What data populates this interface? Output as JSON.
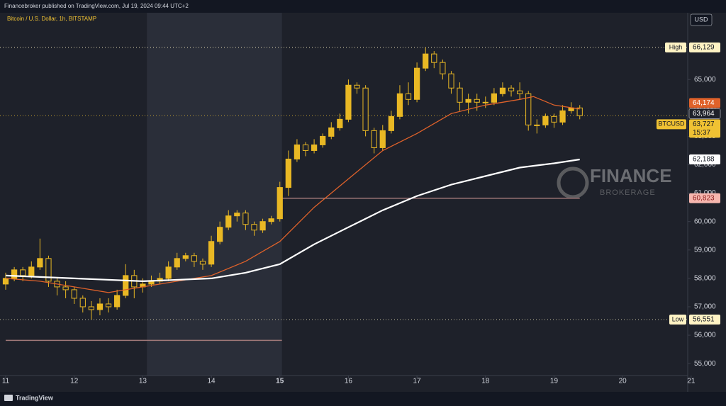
{
  "header": {
    "published": "Financebroker published on TradingView.com, Jul 19, 2024 09:44 UTC+2",
    "brand": "TradingView"
  },
  "chart_data": {
    "type": "candlestick",
    "title": "Bitcoin / U.S. Dollar, 1h, BITSTAMP",
    "currency": "USD",
    "color": "#e9b824",
    "x": [
      11,
      11.125,
      11.25,
      11.375,
      11.5,
      11.625,
      11.75,
      11.875,
      12,
      12.125,
      12.25,
      12.375,
      12.5,
      12.625,
      12.75,
      12.875,
      13,
      13.125,
      13.25,
      13.375,
      13.5,
      13.625,
      13.75,
      13.875,
      14,
      14.125,
      14.25,
      14.375,
      14.5,
      14.625,
      14.75,
      14.875,
      15,
      15.125,
      15.25,
      15.375,
      15.5,
      15.625,
      15.75,
      15.875,
      16,
      16.125,
      16.25,
      16.375,
      16.5,
      16.625,
      16.75,
      16.875,
      17,
      17.125,
      17.25,
      17.375,
      17.5,
      17.625,
      17.75,
      17.875,
      18,
      18.125,
      18.25,
      18.375,
      18.5,
      18.625,
      18.75,
      18.875,
      19,
      19.125,
      19.25,
      19.375
    ],
    "open": [
      57800,
      58000,
      58300,
      58100,
      58400,
      58700,
      57900,
      57700,
      57600,
      57300,
      57000,
      56900,
      57100,
      57000,
      57400,
      58100,
      57700,
      57800,
      57900,
      58000,
      58400,
      58700,
      58800,
      58600,
      58500,
      59300,
      59800,
      60200,
      60300,
      59900,
      59700,
      60000,
      60100,
      61200,
      62200,
      62700,
      62500,
      62700,
      63000,
      63300,
      63600,
      64800,
      64700,
      63200,
      62600,
      63200,
      63700,
      64500,
      64300,
      65400,
      65900,
      65600,
      65200,
      64700,
      64200,
      64300,
      64200,
      64200,
      64500,
      64700,
      64600,
      64500,
      63400,
      63400,
      63700,
      63500,
      63900,
      64000
    ],
    "high": [
      58200,
      58400,
      58400,
      58600,
      59400,
      58800,
      58000,
      57900,
      57700,
      57400,
      57200,
      57300,
      57300,
      57600,
      58500,
      58300,
      58000,
      58100,
      58200,
      58600,
      58900,
      58900,
      58900,
      58700,
      59500,
      60000,
      60400,
      60400,
      60400,
      60000,
      60100,
      60200,
      61400,
      62500,
      62900,
      62800,
      62900,
      63100,
      63500,
      63800,
      65000,
      64900,
      64800,
      63300,
      63400,
      63900,
      64800,
      64900,
      65600,
      66129,
      66000,
      65700,
      65300,
      64900,
      64500,
      64500,
      64400,
      64700,
      64900,
      64800,
      64900,
      64600,
      63600,
      63800,
      63800,
      64100,
      64200,
      64100
    ],
    "low": [
      57600,
      57900,
      57900,
      58000,
      58300,
      57700,
      57400,
      57300,
      57100,
      56800,
      56551,
      56700,
      56800,
      56900,
      57300,
      57300,
      57500,
      57700,
      57800,
      57900,
      58300,
      58600,
      58400,
      58300,
      58400,
      59200,
      59700,
      60000,
      59700,
      59500,
      59600,
      59900,
      60000,
      60900,
      62100,
      62300,
      62400,
      62600,
      62900,
      63200,
      63500,
      64500,
      63000,
      62400,
      62500,
      63100,
      63600,
      64100,
      64200,
      65300,
      65400,
      65000,
      64500,
      63900,
      63800,
      63900,
      64000,
      64100,
      64400,
      64400,
      64300,
      63200,
      63100,
      63300,
      63300,
      63400,
      63800,
      63600
    ],
    "close": [
      58000,
      58300,
      58100,
      58400,
      58700,
      57900,
      57700,
      57600,
      57300,
      57000,
      56900,
      57100,
      57000,
      57400,
      58100,
      57700,
      57800,
      57900,
      58000,
      58400,
      58700,
      58800,
      58600,
      58500,
      59300,
      59800,
      60200,
      60300,
      59900,
      59700,
      60000,
      60100,
      61200,
      62200,
      62700,
      62500,
      62700,
      63000,
      63300,
      63600,
      64800,
      64700,
      63200,
      62600,
      63200,
      63700,
      64500,
      64300,
      65400,
      65900,
      65600,
      65200,
      64700,
      64200,
      64300,
      64200,
      64200,
      64500,
      64700,
      64600,
      64500,
      63400,
      63400,
      63700,
      63500,
      63900,
      64000,
      63727
    ],
    "lines": [
      {
        "color": "#e0622a",
        "x": [
          11,
          11.5,
          12,
          12.5,
          13,
          13.5,
          14,
          14.5,
          15,
          15.5,
          16,
          16.5,
          17,
          17.5,
          18,
          18.5,
          18.7,
          19,
          19.375
        ],
        "values": [
          58000,
          57900,
          57700,
          57500,
          57700,
          57900,
          58100,
          58600,
          59300,
          60500,
          61500,
          62500,
          63100,
          63800,
          64100,
          64300,
          64400,
          64100,
          63964
        ]
      },
      {
        "color": "#ffffff",
        "x": [
          11,
          12,
          13,
          14,
          14.5,
          15,
          15.5,
          16,
          16.5,
          17,
          17.5,
          18,
          18.5,
          19,
          19.375
        ],
        "values": [
          58100,
          58000,
          57900,
          58000,
          58200,
          58500,
          59200,
          59800,
          60400,
          60900,
          61300,
          61600,
          61900,
          62050,
          62188
        ]
      }
    ],
    "levels": [
      {
        "value": 60823,
        "x": [
          15.03,
          19.375
        ],
        "color": "#a07878"
      },
      {
        "value": 55817,
        "x": [
          11,
          15.03
        ],
        "color": "#a07878"
      }
    ],
    "highlight": [
      13.06,
      15.03
    ],
    "price_labels": [
      {
        "name": "High",
        "value": 66129,
        "label": "66,129",
        "color": "#fff3c4",
        "text_color": "#131722",
        "line": "dotted"
      },
      {
        "value": 64174,
        "label": "64,174",
        "color": "#e0622a",
        "text_color": "#ffffff"
      },
      {
        "value": 63964,
        "label": "63,964",
        "color": "#1e212a",
        "text_color": "#ffffff"
      },
      {
        "name": "BTCUSD",
        "value": 63727,
        "label": "63,727",
        "countdown": "15:37",
        "color": "#f0c233",
        "text_color": "#131722",
        "line": "dotted"
      },
      {
        "value": 62188,
        "label": "62,188",
        "color": "#ffffff",
        "text_color": "#131722"
      },
      {
        "value": 60823,
        "label": "60,823",
        "color": "#f6b6ae",
        "text_color": "#8b1c1c"
      },
      {
        "name": "Low",
        "value": 56551,
        "label": "56,551",
        "color": "#fff3c4",
        "text_color": "#131722",
        "line": "dotted"
      }
    ],
    "watermark": {
      "title": "FINANCE",
      "subtitle": "BROKERAGE"
    },
    "xlim": [
      10.917,
      20.95
    ],
    "ylim": [
      54580,
      67350
    ],
    "xticks": [
      11,
      12,
      13,
      14,
      15,
      16,
      17,
      18,
      19,
      20,
      21
    ],
    "yticks": [
      {
        "value": 55000,
        "label": "55,000"
      },
      {
        "value": 56000,
        "label": "56,000"
      },
      {
        "value": 57000,
        "label": "57,000"
      },
      {
        "value": 58000,
        "label": "58,000"
      },
      {
        "value": 59000,
        "label": "59,000"
      },
      {
        "value": 60000,
        "label": "60,000"
      },
      {
        "value": 61000,
        "label": "61,000"
      },
      {
        "value": 62000,
        "label": "62,000"
      },
      {
        "value": 63000,
        "label": "63,000"
      },
      {
        "value": 64000,
        "label": "64,000"
      },
      {
        "value": 65000,
        "label": "65,000"
      }
    ]
  }
}
